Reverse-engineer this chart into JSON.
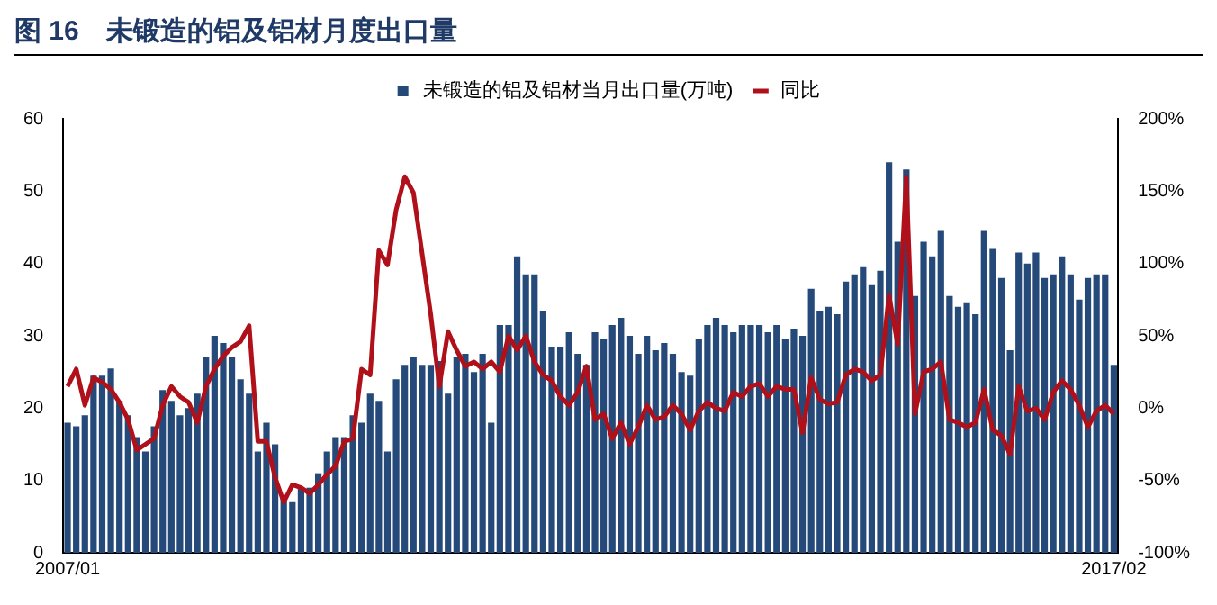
{
  "chart_data": {
    "type": "bar",
    "title": "图 16　未锻造的铝及铝材月度出口量",
    "categories": [
      "2007/01",
      null,
      null,
      null,
      null,
      null,
      null,
      null,
      null,
      null,
      null,
      null,
      null,
      null,
      null,
      null,
      null,
      null,
      null,
      null,
      null,
      null,
      null,
      null,
      null,
      null,
      null,
      null,
      null,
      null,
      null,
      null,
      null,
      null,
      null,
      null,
      null,
      null,
      null,
      null,
      null,
      null,
      null,
      null,
      null,
      null,
      null,
      null,
      null,
      null,
      null,
      null,
      null,
      null,
      null,
      null,
      null,
      null,
      null,
      null,
      null,
      null,
      null,
      null,
      null,
      null,
      null,
      null,
      null,
      null,
      null,
      null,
      null,
      null,
      null,
      null,
      null,
      null,
      null,
      null,
      null,
      null,
      null,
      null,
      null,
      null,
      null,
      null,
      null,
      null,
      null,
      null,
      null,
      null,
      null,
      null,
      null,
      null,
      null,
      null,
      null,
      null,
      null,
      null,
      null,
      null,
      null,
      null,
      null,
      null,
      null,
      null,
      null,
      null,
      null,
      null,
      null,
      null,
      null,
      null,
      null,
      "2017/02"
    ],
    "series": [
      {
        "name": "未锻造的铝及铝材当月出口量(万吨)",
        "color": "#254a7a",
        "values": [
          18,
          17.5,
          19,
          24.5,
          24.5,
          25.5,
          21,
          19,
          16,
          14,
          17.5,
          22.5,
          21,
          19,
          20,
          22,
          27,
          30,
          29,
          27,
          24,
          22,
          14,
          18,
          15,
          8,
          7,
          9,
          9,
          11,
          14,
          16,
          16,
          19,
          18,
          22,
          21,
          14,
          24,
          26,
          27,
          26,
          26,
          26.5,
          22,
          27,
          27.5,
          25,
          27.5,
          18,
          31.5,
          31.5,
          41,
          38.5,
          38.5,
          33.5,
          28.5,
          28.5,
          30.5,
          27.5,
          26,
          30.5,
          29.5,
          31.5,
          32.5,
          30,
          27.5,
          30,
          28,
          29,
          27.5,
          25,
          24.5,
          29.5,
          31.5,
          32.5,
          31.5,
          30.5,
          31.5,
          31.5,
          31.5,
          30.5,
          31.5,
          29.5,
          31,
          30,
          36.5,
          33.5,
          34,
          33,
          37.5,
          38.5,
          39.5,
          37,
          39,
          54,
          43,
          53,
          35.5,
          43,
          41,
          44.5,
          35.5,
          34,
          34.5,
          33,
          44.5,
          42,
          38,
          28,
          41.5,
          40,
          41.5,
          38,
          38.5,
          41,
          38.5,
          35,
          38,
          38.5,
          38.5,
          26
        ]
      },
      {
        "name": "同比",
        "type": "line",
        "axis": "y2",
        "color": "#b0101a",
        "values": [
          15,
          27,
          2,
          21,
          18,
          13,
          4,
          -8,
          -29,
          -25,
          -21,
          2,
          15,
          8,
          4,
          -10,
          15,
          27,
          36,
          42,
          46,
          57,
          -23,
          -23,
          -48,
          -65,
          -53,
          -55,
          -59,
          -53,
          -46,
          -40,
          -23,
          -21,
          27,
          23,
          109,
          99,
          137,
          160,
          149,
          107,
          65,
          15,
          53,
          40,
          29,
          32,
          27,
          32,
          25,
          50,
          40,
          50,
          32,
          23,
          19,
          8,
          2,
          11,
          29,
          -8,
          -4,
          -21,
          -10,
          -25,
          -13,
          2,
          -8,
          -6,
          2,
          -4,
          -15,
          -2,
          4,
          0,
          -2,
          11,
          8,
          15,
          17,
          8,
          15,
          13,
          13,
          -17,
          21,
          6,
          3,
          4,
          23,
          27,
          25,
          19,
          23,
          78,
          44,
          160,
          -4,
          25,
          27,
          32,
          -8,
          -10,
          -13,
          -10,
          13,
          -15,
          -19,
          -32,
          15,
          -2,
          0,
          -8,
          11,
          19,
          13,
          2,
          -13,
          -2,
          2,
          -4
        ]
      }
    ],
    "ylim": [
      0,
      60
    ],
    "yticks": [
      0,
      10,
      20,
      30,
      40,
      50,
      60
    ],
    "y2lim": [
      -100,
      200
    ],
    "y2ticks": [
      {
        "value": -100,
        "label": "-100%"
      },
      {
        "value": -50,
        "label": "-50%"
      },
      {
        "value": 0,
        "label": "0%"
      },
      {
        "value": 50,
        "label": "50%"
      },
      {
        "value": 100,
        "label": "100%"
      },
      {
        "value": 150,
        "label": "150%"
      },
      {
        "value": 200,
        "label": "200%"
      }
    ],
    "legend": "top",
    "grid": false
  }
}
